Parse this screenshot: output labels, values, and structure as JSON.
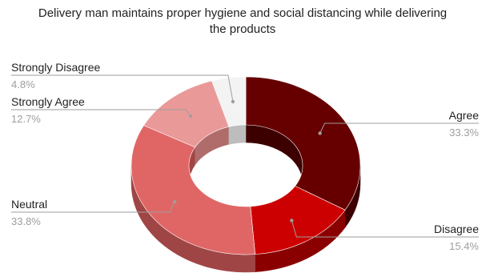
{
  "chart_data": {
    "type": "pie",
    "donut": true,
    "three_d": true,
    "title_lines": [
      "Delivery man maintains proper hygiene and social distancing while delivering",
      "the products"
    ],
    "slices": [
      {
        "label": "Agree",
        "value": 33.3,
        "pct_text": "33.3%",
        "color": "#660000",
        "side_color": "#3d0000"
      },
      {
        "label": "Disagree",
        "value": 15.4,
        "pct_text": "15.4%",
        "color": "#cc0000",
        "side_color": "#8a0000"
      },
      {
        "label": "Neutral",
        "value": 33.8,
        "pct_text": "33.8%",
        "color": "#e06666",
        "side_color": "#a04545"
      },
      {
        "label": "Strongly Agree",
        "value": 12.7,
        "pct_text": "12.7%",
        "color": "#ea9999",
        "side_color": "#b06b6b"
      },
      {
        "label": "Strongly Disagree",
        "value": 4.8,
        "pct_text": "4.8%",
        "color": "#f3f3f3",
        "side_color": "#bdbdbd"
      }
    ]
  }
}
